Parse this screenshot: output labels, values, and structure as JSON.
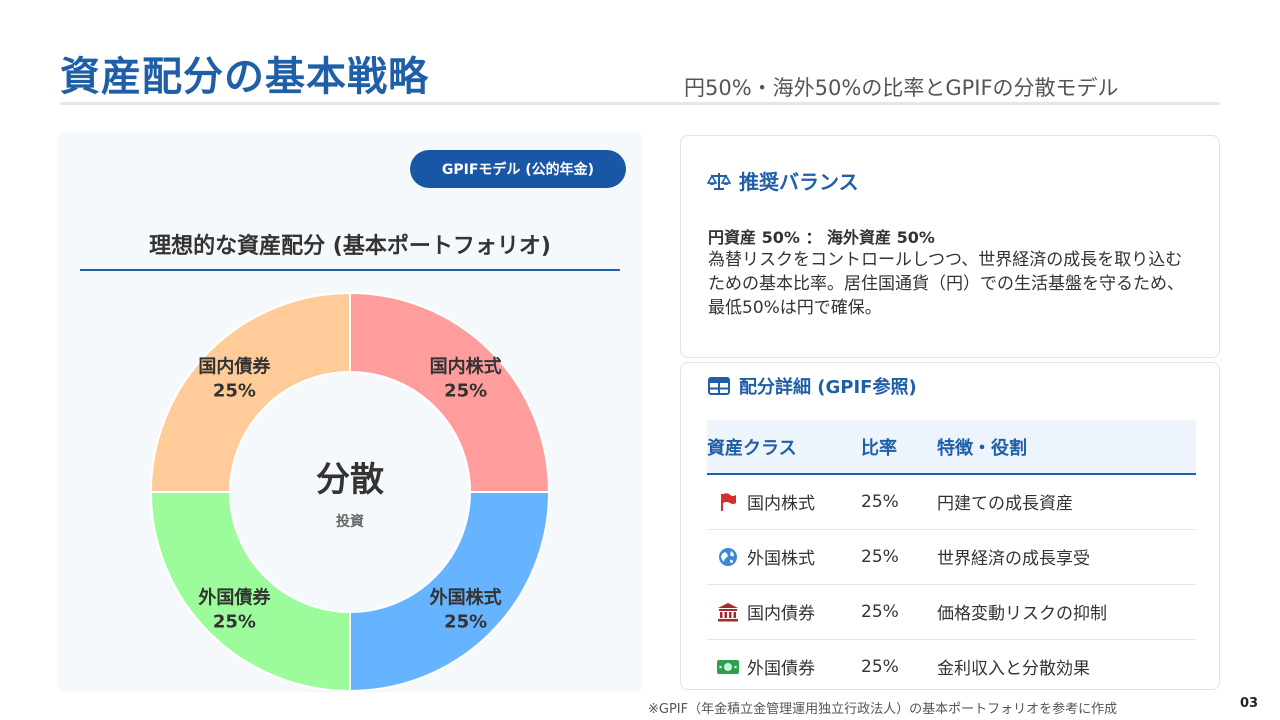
{
  "header": {
    "title": "資産配分の基本戦略",
    "subtitle": "円50%・海外50%の比率とGPIFの分散モデル"
  },
  "left": {
    "badge": "GPIFモデル (公的年金)",
    "heading": "理想的な資産配分 (基本ポートフォリオ)"
  },
  "chart_data": {
    "type": "pie",
    "title": "理想的な資産配分 (基本ポートフォリオ)",
    "center_label": "分散",
    "center_sublabel": "投資",
    "slices": [
      {
        "label": "国内株式",
        "value": 25,
        "display": "25%",
        "color": "#ff9c9c"
      },
      {
        "label": "外国株式",
        "value": 25,
        "display": "25%",
        "color": "#66b3ff"
      },
      {
        "label": "外国債券",
        "value": 25,
        "display": "25%",
        "color": "#9cfc9c"
      },
      {
        "label": "国内債券",
        "value": 25,
        "display": "25%",
        "color": "#ffcc99"
      }
    ]
  },
  "balance": {
    "icon": "scale-icon",
    "heading": "推奨バランス",
    "ratio": "円資産 50% ： 海外資産 50%",
    "description": " 為替リスクをコントロールしつつ、世界経済の成長を取り込むための基本比率。居住国通貨（円）での生活基盤を守るため、最低50%は円で確保。"
  },
  "allocation": {
    "icon": "table-icon",
    "heading": "配分詳細 (GPIF参照)",
    "columns": [
      "資産クラス",
      "比率",
      "特徴・役割"
    ],
    "rows": [
      {
        "icon": "flag-icon",
        "asset": "国内株式",
        "ratio": "25%",
        "role": "円建ての成長資産"
      },
      {
        "icon": "globe-icon",
        "asset": "外国株式",
        "ratio": "25%",
        "role": "世界経済の成長享受"
      },
      {
        "icon": "bank-icon",
        "asset": "国内債券",
        "ratio": "25%",
        "role": "価格変動リスクの抑制"
      },
      {
        "icon": "money-icon",
        "asset": "外国債券",
        "ratio": "25%",
        "role": "金利収入と分散効果"
      }
    ]
  },
  "footer": {
    "note": "※GPIF（年金積立金管理運用独立行政法人）の基本ポートフォリオを参考に作成",
    "page": "03"
  },
  "colors": {
    "primary": "#1f5fa8",
    "badge": "#1a56a6"
  }
}
